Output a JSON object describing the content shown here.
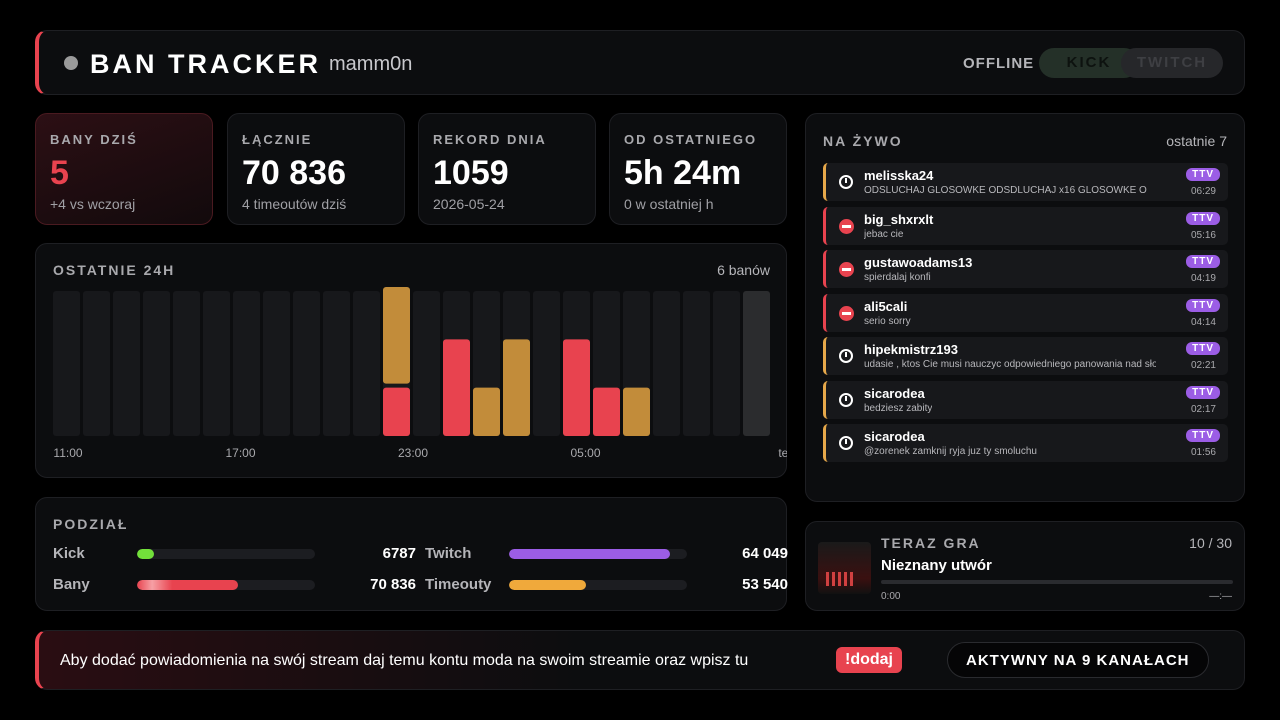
{
  "header": {
    "title": "BAN TRACKER",
    "channel": "mamm0n",
    "status": "OFFLINE",
    "tabs": [
      "KICK",
      "TWITCH"
    ]
  },
  "stats": [
    {
      "label": "BANY DZIŚ",
      "value": "5",
      "sub": "+4 vs wczoraj"
    },
    {
      "label": "ŁĄCZNIE",
      "value": "70 836",
      "sub": "4 timeoutów dziś"
    },
    {
      "label": "REKORD DNIA",
      "value": "1059",
      "sub": "2026-05-24"
    },
    {
      "label": "OD OSTATNIEGO",
      "value": "5h 24m",
      "sub": "0 w ostatniej h"
    }
  ],
  "last24h": {
    "title": "OSTATNIE 24H",
    "count_label": "6 banów",
    "ylim": [
      0,
      3
    ],
    "labels": [
      "11:00",
      "17:00",
      "23:00",
      "05:00",
      "teraz"
    ],
    "bans": [
      0,
      0,
      0,
      0,
      0,
      0,
      0,
      0,
      0,
      0,
      0,
      1,
      0,
      2,
      0,
      0,
      0,
      2,
      1,
      0,
      0,
      0,
      0,
      0
    ],
    "timeouts": [
      0,
      0,
      0,
      0,
      0,
      0,
      0,
      0,
      0,
      0,
      0,
      2,
      0,
      0,
      1,
      2,
      0,
      0,
      0,
      1,
      0,
      0,
      0,
      0
    ],
    "ban_color": "#e8434f",
    "timeout_color": "#c28c3a"
  },
  "split": {
    "title": "PODZIAŁ",
    "items": [
      {
        "name": "Kick",
        "value": 6787,
        "color": "#72e03a"
      },
      {
        "name": "Twitch",
        "value": {
          "value": 64049,
          "label": "64 049"
        },
        "color": "#9b5de5"
      },
      {
        "name": "Bany",
        "value": {
          "value": 70836,
          "label": "70 836"
        },
        "color": "#e8434f"
      },
      {
        "name": "Timeouty",
        "value": {
          "value": 53540,
          "label": "53 540"
        },
        "color": "#f0a93b"
      }
    ]
  },
  "live": {
    "title": "NA ŻYWO",
    "range": "ostatnie 7",
    "items": [
      {
        "user": "melisska24",
        "message": "ODSLUCHAJ GLOSOWKE ODSDLUCHAJ x16 GLOSOWKE O",
        "time": "06:29",
        "badge": "TTV",
        "type": "timeout"
      },
      {
        "user": "big_shxrxlt",
        "message": "jebac cie",
        "time": "05:16",
        "badge": "TTV",
        "type": "ban"
      },
      {
        "user": "gustawoadams13",
        "message": "spierdalaj konfi",
        "time": "04:19",
        "badge": "TTV",
        "type": "ban"
      },
      {
        "user": "ali5cali",
        "message": "serio sorry",
        "time": "04:14",
        "badge": "TTV",
        "type": "ban"
      },
      {
        "user": "hipekmistrz193",
        "message": "udasie , ktos Cie musi nauczyc odpowiedniego panowania nad sło",
        "time": "02:21",
        "badge": "TTV",
        "type": "timeout"
      },
      {
        "user": "sicarodea",
        "message": "bedziesz zabity",
        "time": "02:17",
        "badge": "TTV",
        "type": "timeout"
      },
      {
        "user": "sicarodea",
        "message": "@zorenek zamknij ryja juz ty smoluchu",
        "time": "01:56",
        "badge": "TTV",
        "type": "timeout"
      }
    ]
  },
  "player": {
    "title": "TERAZ GRA",
    "position": "10 / 30",
    "track": "Nieznany utwór",
    "elapsed": "0:00",
    "duration": "—:—"
  },
  "footer": {
    "text": "Aby dodać powiadomienia na swój stream daj temu kontu moda na swoim streamie oraz wpisz tu",
    "command": "!dodaj",
    "active": "AKTYWNY NA 9 KANAŁACH"
  }
}
